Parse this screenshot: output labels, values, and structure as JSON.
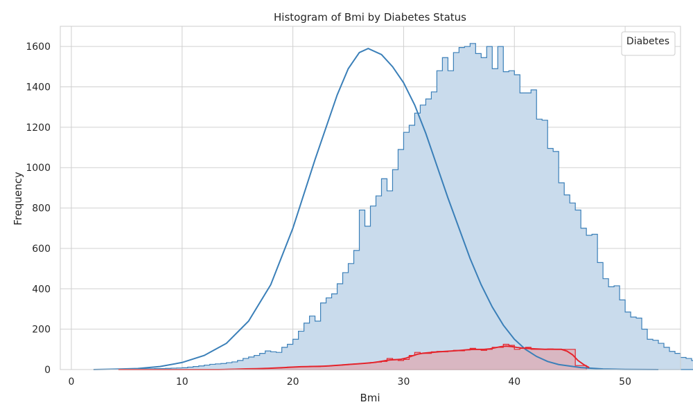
{
  "chart_data": {
    "type": "histogram",
    "title": "Histogram of Bmi by Diabetes Status",
    "xlabel": "Bmi",
    "ylabel": "Frequency",
    "xlim": [
      -1,
      55
    ],
    "ylim": [
      0,
      1700
    ],
    "x_ticks": [
      0,
      10,
      20,
      30,
      40,
      50
    ],
    "y_ticks": [
      0,
      200,
      400,
      600,
      800,
      1000,
      1200,
      1400,
      1600
    ],
    "grid": true,
    "legend": {
      "title": "Diabetes",
      "placement": "top-right"
    },
    "bin_width": 0.5,
    "series": [
      {
        "color": "#3a7fb8",
        "fill": "#c9dbec",
        "bins_start": 2,
        "counts": [
          0,
          0,
          0,
          0,
          0,
          0,
          2,
          3,
          3,
          4,
          4,
          5,
          5,
          6,
          7,
          8,
          9,
          12,
          15,
          18,
          22,
          26,
          28,
          30,
          34,
          38,
          45,
          55,
          62,
          70,
          80,
          92,
          88,
          85,
          110,
          125,
          150,
          190,
          230,
          265,
          240,
          330,
          355,
          375,
          425,
          480,
          525,
          590,
          790,
          710,
          810,
          860,
          945,
          885,
          990,
          1090,
          1175,
          1210,
          1270,
          1310,
          1340,
          1375,
          1480,
          1545,
          1480,
          1570,
          1595,
          1600,
          1615,
          1565,
          1545,
          1600,
          1490,
          1600,
          1475,
          1480,
          1460,
          1370,
          1370,
          1385,
          1240,
          1235,
          1095,
          1080,
          925,
          865,
          825,
          790,
          700,
          665,
          670,
          530,
          450,
          410,
          415,
          345,
          285,
          260,
          255,
          200,
          150,
          145,
          130,
          110,
          90,
          80,
          60,
          55,
          45,
          40,
          32,
          28,
          20,
          15,
          12,
          8,
          6,
          5,
          4,
          3,
          2,
          2,
          1,
          1,
          1,
          0,
          0,
          0,
          0,
          0,
          0,
          0,
          0,
          0,
          0,
          0,
          0,
          0,
          0,
          0,
          0,
          0
        ],
        "kde": [
          [
            2,
            0
          ],
          [
            4,
            2
          ],
          [
            6,
            5
          ],
          [
            8,
            15
          ],
          [
            10,
            35
          ],
          [
            12,
            70
          ],
          [
            14,
            130
          ],
          [
            16,
            240
          ],
          [
            18,
            420
          ],
          [
            20,
            700
          ],
          [
            22,
            1040
          ],
          [
            24,
            1360
          ],
          [
            25,
            1490
          ],
          [
            26,
            1570
          ],
          [
            26.8,
            1590
          ],
          [
            28,
            1560
          ],
          [
            29,
            1500
          ],
          [
            30,
            1420
          ],
          [
            31,
            1310
          ],
          [
            32,
            1170
          ],
          [
            33,
            1010
          ],
          [
            34,
            850
          ],
          [
            35,
            700
          ],
          [
            36,
            550
          ],
          [
            37,
            420
          ],
          [
            38,
            310
          ],
          [
            39,
            220
          ],
          [
            40,
            150
          ],
          [
            41,
            100
          ],
          [
            42,
            65
          ],
          [
            43,
            40
          ],
          [
            44,
            25
          ],
          [
            46,
            10
          ],
          [
            48,
            3
          ],
          [
            50,
            1
          ],
          [
            53,
            0
          ]
        ]
      },
      {
        "color": "#e4242c",
        "fill": "#dcb0bb",
        "bins_start": 4,
        "counts": [
          0,
          0,
          0,
          0,
          0,
          0,
          0,
          0,
          0,
          0,
          0,
          0,
          0,
          0,
          0,
          0,
          0,
          0,
          0,
          0,
          1,
          2,
          3,
          3,
          4,
          4,
          5,
          6,
          7,
          8,
          10,
          12,
          13,
          14,
          15,
          16,
          15,
          16,
          18,
          20,
          22,
          24,
          26,
          28,
          30,
          32,
          35,
          37,
          40,
          55,
          50,
          45,
          50,
          70,
          85,
          80,
          80,
          88,
          90,
          88,
          92,
          95,
          93,
          97,
          105,
          100,
          95,
          100,
          110,
          110,
          125,
          120,
          100,
          105,
          110,
          100,
          100,
          100,
          102,
          100,
          100,
          100,
          100,
          20,
          20,
          0
        ]
      }
    ]
  }
}
